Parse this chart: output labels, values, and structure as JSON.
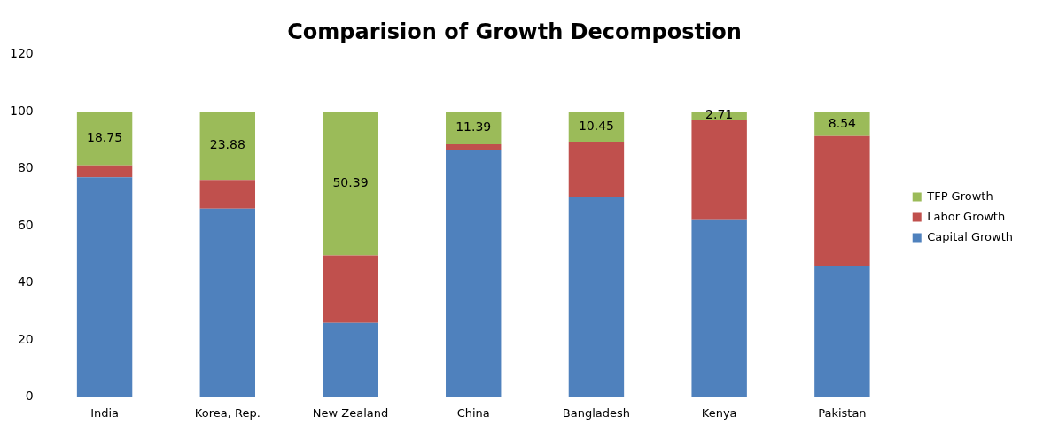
{
  "chart_data": {
    "type": "bar",
    "title": "Comparision of Growth Decompostion",
    "stacked": true,
    "categories": [
      "India",
      "Korea, Rep.",
      "New Zealand",
      "China",
      "Bangladesh",
      "Kenya",
      "Pakistan"
    ],
    "series": [
      {
        "name": "Capital Growth",
        "color": "#4f81bd",
        "values": [
          77,
          66,
          26,
          86.6,
          70,
          62.3,
          46
        ]
      },
      {
        "name": "Labor Growth",
        "color": "#c0504d",
        "values": [
          4.25,
          10.12,
          23.61,
          2.01,
          19.55,
          34.99,
          45.46
        ]
      },
      {
        "name": "TFP Growth",
        "color": "#9bbb59",
        "values": [
          18.75,
          23.88,
          50.39,
          11.39,
          10.45,
          2.71,
          8.54
        ],
        "value_labels": [
          "18.75",
          "23.88",
          "50.39",
          "11.39",
          "10.45",
          "2.71",
          "8.54"
        ]
      }
    ],
    "ylim": [
      0,
      120
    ],
    "yticks": [
      0,
      20,
      40,
      60,
      80,
      100,
      120
    ],
    "grid": false,
    "legend": "right"
  }
}
